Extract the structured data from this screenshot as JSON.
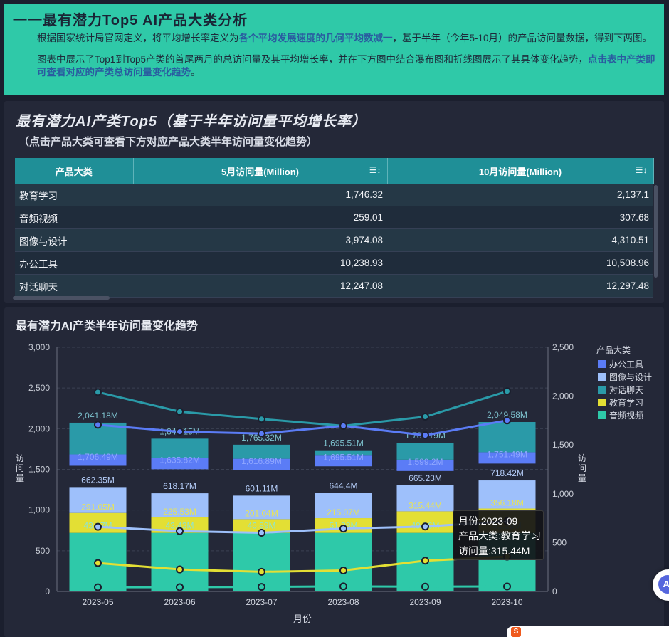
{
  "banner": {
    "title": "一一最有潜力Top5 AI产品大类分析",
    "p1_a": "根据国家统计局官网定义，将平均增长率定义为",
    "p1_b": "各个平均发展速度的几何平均数减一",
    "p1_c": "，基于半年（今年5-10月）的产品访问量数据，得到下两图。",
    "p2_a": "图表中展示了Top1到Top5产类的首尾两月的总访问量及其平均增长率，并在下方图中结合瀑布图和折线图展示了其具体变化趋势，",
    "p2_b": "点击表中产类即可查看对应的产类总访问量变化趋势",
    "p2_c": "。"
  },
  "card1": {
    "title": "最有潜力AI产类Top5（基于半年访问量平均增长率）",
    "subtitle": "（点击产品大类可查看下方对应产品大类半年访问量变化趋势）"
  },
  "table": {
    "headers": [
      "产品大类",
      "5月访问量(Million)",
      "10月访问量(Million)"
    ],
    "sort_icon": "☰↕",
    "rows": [
      {
        "name": "教育学习",
        "may": "1,746.32",
        "oct": "2,137.1"
      },
      {
        "name": "音频视频",
        "may": "259.01",
        "oct": "307.68"
      },
      {
        "name": "图像与设计",
        "may": "3,974.08",
        "oct": "4,310.51"
      },
      {
        "name": "办公工具",
        "may": "10,238.93",
        "oct": "10,508.96"
      },
      {
        "name": "对话聊天",
        "may": "12,247.08",
        "oct": "12,297.48"
      }
    ]
  },
  "card2": {
    "title": "最有潜力AI产类半年访问量变化趋势"
  },
  "chart_data": {
    "type": "bar",
    "xlabel": "月份",
    "ylabel": "访问量",
    "categories": [
      "2023-05",
      "2023-06",
      "2023-07",
      "2023-08",
      "2023-09",
      "2023-10"
    ],
    "left_axis": {
      "ticks": [
        "0",
        "500",
        "1,000",
        "1,500",
        "2,000",
        "2,500",
        "3,000"
      ],
      "ylim": [
        0,
        3000
      ]
    },
    "right_axis": {
      "ticks": [
        "0",
        "500",
        "1,000",
        "1,500",
        "2,000",
        "2,500"
      ],
      "ylim": [
        0,
        2500
      ]
    },
    "legend_title": "产品大类",
    "legend_position": "top-right",
    "series": [
      {
        "name": "办公工具",
        "color": "#5b7cf6",
        "values": [
          1706.49,
          1635.82,
          1616.89,
          1695.51,
          1599.2,
          1751.49
        ],
        "labels": [
          "1,706.49M",
          "1,635.82M",
          "1,616.89M",
          "1,695.51M",
          "1,599.2M",
          "1,751.49M"
        ]
      },
      {
        "name": "图像与设计",
        "color": "#9ec0fb",
        "values": [
          662.35,
          618.17,
          601.11,
          644.4,
          665.23,
          718.42
        ],
        "labels": [
          "662.35M",
          "618.17M",
          "601.11M",
          "644.4M",
          "665.23M",
          "718.42M"
        ]
      },
      {
        "name": "对话聊天",
        "color": "#2a9aa8",
        "values": [
          2041.18,
          1841.15,
          1765.32,
          1695.51,
          1789.19,
          2049.58
        ],
        "labels": [
          "2,041.18M",
          "1,841.15M",
          "1,765.32M",
          "1,695.51M",
          "1,789.19M",
          "2,049.58M"
        ]
      },
      {
        "name": "教育学习",
        "color": "#e3df34",
        "values": [
          291.05,
          225.53,
          201.04,
          215.07,
          315.44,
          356.18
        ],
        "labels": [
          "291.05M",
          "225.53M",
          "201.04M",
          "215.07M",
          "315.44M",
          "356.18M"
        ]
      },
      {
        "name": "音频视频",
        "color": "#2ec9a9",
        "values": [
          43.17,
          43.43,
          46.89,
          51.88,
          49.06,
          51.28
        ],
        "labels": [
          "43.17M",
          "43.43M",
          "46.89M",
          "51.88M",
          "49.06M",
          "51.28M"
        ]
      }
    ],
    "tooltip": {
      "month": "月份:2023-09",
      "category": "产品大类:教育学习",
      "value": "访问量:315.44M"
    }
  },
  "fab": {
    "label": "AI"
  }
}
